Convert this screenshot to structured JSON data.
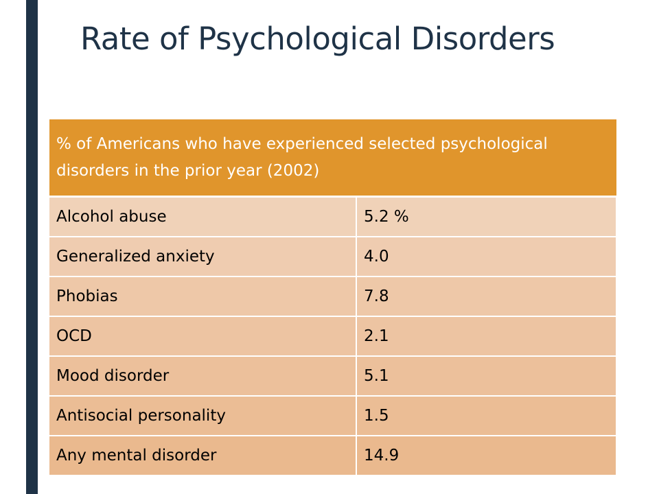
{
  "slide": {
    "title": "Rate of Psychological Disorders"
  },
  "table": {
    "header": "% of Americans who have experienced selected psychological disorders in the prior year (2002)",
    "rows": [
      {
        "disorder": "Alcohol abuse",
        "rate": "5.2 %"
      },
      {
        "disorder": "Generalized anxiety",
        "rate": "4.0"
      },
      {
        "disorder": "Phobias",
        "rate": "7.8"
      },
      {
        "disorder": "OCD",
        "rate": "2.1"
      },
      {
        "disorder": "Mood disorder",
        "rate": "5.1"
      },
      {
        "disorder": "Antisocial personality",
        "rate": "1.5"
      },
      {
        "disorder": "Any mental disorder",
        "rate": "14.9"
      }
    ]
  },
  "colors": {
    "accent_bar": "#1f3347",
    "title_text": "#1f3347",
    "header_fill": "#e0952c",
    "row_fill": "#edc4a2"
  }
}
